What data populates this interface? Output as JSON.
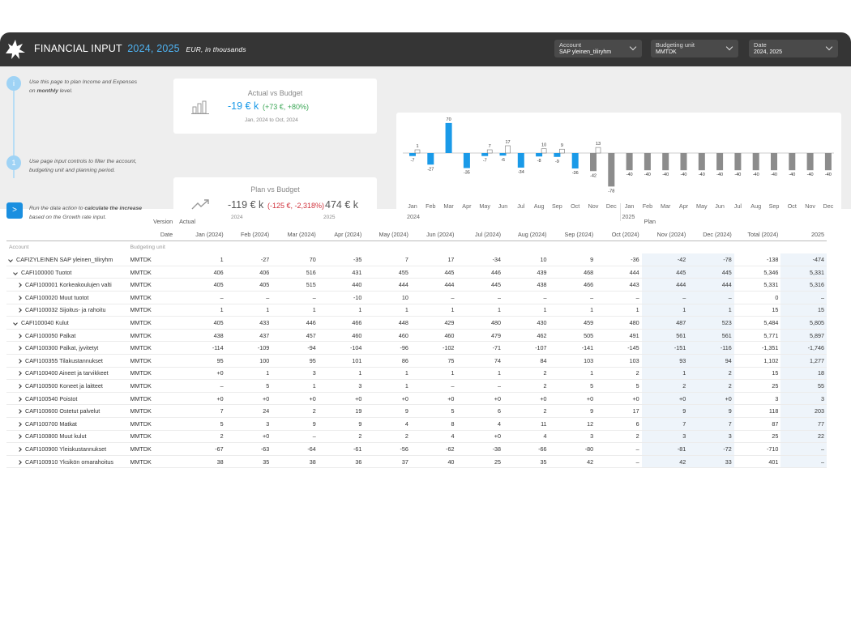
{
  "header": {
    "title": "FINANCIAL INPUT",
    "years": "2024, 2025",
    "unit": "EUR, in thousands",
    "filters": [
      {
        "label": "Account",
        "value": "SAP yleinen_tiliryhm"
      },
      {
        "label": "Budgeting unit",
        "value": "MMTDK"
      },
      {
        "label": "Date",
        "value": "2024, 2025"
      }
    ]
  },
  "steps": [
    {
      "icon": "i",
      "text": "Use this page to plan Income and Expenses on <b>monthly</b> level."
    },
    {
      "icon": "1",
      "text": "Use page input controls to filter the account, budgeting unit and planning period."
    },
    {
      "icon": ">",
      "text": "Run the data action to <b>calculate the increase</b> based on the Growth rate input."
    }
  ],
  "kpi_actual": {
    "title": "Actual vs Budget",
    "value": "-19 € k",
    "delta": "(+73 €, +80%)",
    "sub": "Jan, 2024 to Oct, 2024"
  },
  "kpi_plan": {
    "title": "Plan vs Budget",
    "value_left": "-119 € k",
    "delta": "(-125 €, -2,318%)",
    "value_right": "474 € k",
    "year_left": "2024",
    "year_right": "2025"
  },
  "colors": {
    "actual": "#1a9ae8",
    "plan": "#8c8c8c",
    "positive": "#3aa655",
    "negative": "#d0323c",
    "header": "#353535",
    "accent": "#4fb3f2"
  },
  "chart_data": {
    "type": "bar",
    "categories": [
      "Jan",
      "Feb",
      "Mar",
      "Apr",
      "May",
      "Jun",
      "Jul",
      "Aug",
      "Sep",
      "Oct",
      "Nov",
      "Dec",
      "Jan",
      "Feb",
      "Mar",
      "Apr",
      "May",
      "Jun",
      "Jul",
      "Aug",
      "Sep",
      "Oct",
      "Nov",
      "Dec"
    ],
    "year_labels": [
      "2024",
      "2025"
    ],
    "series": [
      {
        "values": [
          -7,
          -27,
          70,
          -35,
          -7,
          -6,
          -34,
          -8,
          -9,
          -36,
          -42,
          -78,
          -40,
          -40,
          -40,
          -40,
          -40,
          -40,
          -40,
          -40,
          -40,
          -40,
          -40,
          -40
        ],
        "kind": [
          "actual",
          "actual",
          "actual",
          "actual",
          "actual",
          "actual",
          "actual",
          "actual",
          "actual",
          "actual",
          "plan",
          "plan",
          "plan",
          "plan",
          "plan",
          "plan",
          "plan",
          "plan",
          "plan",
          "plan",
          "plan",
          "plan",
          "plan",
          "plan"
        ]
      },
      {
        "values": [
          1,
          null,
          null,
          null,
          7,
          17,
          null,
          10,
          9,
          null,
          13,
          null,
          null,
          null,
          null,
          null,
          null,
          null,
          null,
          null,
          null,
          null,
          null,
          null
        ]
      }
    ]
  },
  "table": {
    "version_label": "Version",
    "date_label": "Date",
    "actual_label": "Actual",
    "plan_label": "Plan",
    "account_label": "Account",
    "unit_label": "Budgeting unit",
    "columns": [
      "Jan (2024)",
      "Feb (2024)",
      "Mar (2024)",
      "Apr (2024)",
      "May (2024)",
      "Jun (2024)",
      "Jul (2024)",
      "Aug (2024)",
      "Sep (2024)",
      "Oct (2024)",
      "Nov (2024)",
      "Dec (2024)",
      "Total (2024)",
      "2025"
    ],
    "rows": [
      {
        "level": 0,
        "open": true,
        "account": "CAFIZYLEINEN SAP yleinen_tiliryhm",
        "unit": "MMTDK",
        "values": [
          "1",
          "-27",
          "70",
          "-35",
          "7",
          "17",
          "-34",
          "10",
          "9",
          "-36",
          "-42",
          "-78",
          "-138",
          "-474"
        ]
      },
      {
        "level": 1,
        "open": true,
        "account": "CAFI100000 Tuotot",
        "unit": "MMTDK",
        "values": [
          "406",
          "406",
          "516",
          "431",
          "455",
          "445",
          "446",
          "439",
          "468",
          "444",
          "445",
          "445",
          "5,346",
          "5,331"
        ]
      },
      {
        "level": 2,
        "open": false,
        "account": "CAFI100001 Korkeakoulujen valti",
        "unit": "MMTDK",
        "values": [
          "405",
          "405",
          "515",
          "440",
          "444",
          "444",
          "445",
          "438",
          "466",
          "443",
          "444",
          "444",
          "5,331",
          "5,316"
        ]
      },
      {
        "level": 2,
        "open": false,
        "account": "CAFI100020 Muut tuotot",
        "unit": "MMTDK",
        "values": [
          "–",
          "–",
          "–",
          "-10",
          "10",
          "–",
          "–",
          "–",
          "–",
          "–",
          "–",
          "–",
          "0",
          "–"
        ]
      },
      {
        "level": 2,
        "open": false,
        "account": "CAFI100032 Sijoitus- ja rahoitu",
        "unit": "MMTDK",
        "values": [
          "1",
          "1",
          "1",
          "1",
          "1",
          "1",
          "1",
          "1",
          "1",
          "1",
          "1",
          "1",
          "15",
          "15"
        ]
      },
      {
        "level": 1,
        "open": true,
        "account": "CAFI100040 Kulut",
        "unit": "MMTDK",
        "values": [
          "405",
          "433",
          "446",
          "466",
          "448",
          "429",
          "480",
          "430",
          "459",
          "480",
          "487",
          "523",
          "5,484",
          "5,805"
        ]
      },
      {
        "level": 2,
        "open": false,
        "account": "CAFI100050 Palkat",
        "unit": "MMTDK",
        "values": [
          "438",
          "437",
          "457",
          "460",
          "460",
          "460",
          "479",
          "462",
          "505",
          "491",
          "561",
          "561",
          "5,771",
          "5,897"
        ]
      },
      {
        "level": 2,
        "open": false,
        "account": "CAFI100300 Palkat, jyvitetyt",
        "unit": "MMTDK",
        "values": [
          "-114",
          "-109",
          "-94",
          "-104",
          "-96",
          "-102",
          "-71",
          "-107",
          "-141",
          "-145",
          "-151",
          "-116",
          "-1,351",
          "-1,746"
        ]
      },
      {
        "level": 2,
        "open": false,
        "account": "CAFI100355 Tilakustannukset",
        "unit": "MMTDK",
        "values": [
          "95",
          "100",
          "95",
          "101",
          "86",
          "75",
          "74",
          "84",
          "103",
          "103",
          "93",
          "94",
          "1,102",
          "1,277"
        ]
      },
      {
        "level": 2,
        "open": false,
        "account": "CAFI100400 Aineet ja tarvikkeet",
        "unit": "MMTDK",
        "values": [
          "+0",
          "1",
          "3",
          "1",
          "1",
          "1",
          "1",
          "2",
          "1",
          "2",
          "1",
          "2",
          "15",
          "18"
        ]
      },
      {
        "level": 2,
        "open": false,
        "account": "CAFI100500 Koneet ja laitteet",
        "unit": "MMTDK",
        "values": [
          "–",
          "5",
          "1",
          "3",
          "1",
          "–",
          "–",
          "2",
          "5",
          "5",
          "2",
          "2",
          "25",
          "55"
        ]
      },
      {
        "level": 2,
        "open": false,
        "account": "CAFI100540 Poistot",
        "unit": "MMTDK",
        "values": [
          "+0",
          "+0",
          "+0",
          "+0",
          "+0",
          "+0",
          "+0",
          "+0",
          "+0",
          "+0",
          "+0",
          "+0",
          "3",
          "3"
        ]
      },
      {
        "level": 2,
        "open": false,
        "account": "CAFI100600 Ostetut palvelut",
        "unit": "MMTDK",
        "values": [
          "7",
          "24",
          "2",
          "19",
          "9",
          "5",
          "6",
          "2",
          "9",
          "17",
          "9",
          "9",
          "118",
          "203"
        ]
      },
      {
        "level": 2,
        "open": false,
        "account": "CAFI100700 Matkat",
        "unit": "MMTDK",
        "values": [
          "5",
          "3",
          "9",
          "9",
          "4",
          "8",
          "4",
          "11",
          "12",
          "6",
          "7",
          "7",
          "87",
          "77"
        ]
      },
      {
        "level": 2,
        "open": false,
        "account": "CAFI100800 Muut kulut",
        "unit": "MMTDK",
        "values": [
          "2",
          "+0",
          "–",
          "2",
          "2",
          "4",
          "+0",
          "4",
          "3",
          "2",
          "3",
          "3",
          "25",
          "22"
        ]
      },
      {
        "level": 2,
        "open": false,
        "account": "CAFI100900 Yleiskustannukset",
        "unit": "MMTDK",
        "values": [
          "-67",
          "-63",
          "-64",
          "-61",
          "-56",
          "-62",
          "-38",
          "-66",
          "-80",
          "–",
          "-81",
          "-72",
          "-710",
          "–"
        ]
      },
      {
        "level": 2,
        "open": false,
        "account": "CAFI100910 Yksikön omarahoitus",
        "unit": "MMTDK",
        "values": [
          "38",
          "35",
          "38",
          "36",
          "37",
          "40",
          "25",
          "35",
          "42",
          "–",
          "42",
          "33",
          "401",
          "–"
        ]
      }
    ]
  }
}
